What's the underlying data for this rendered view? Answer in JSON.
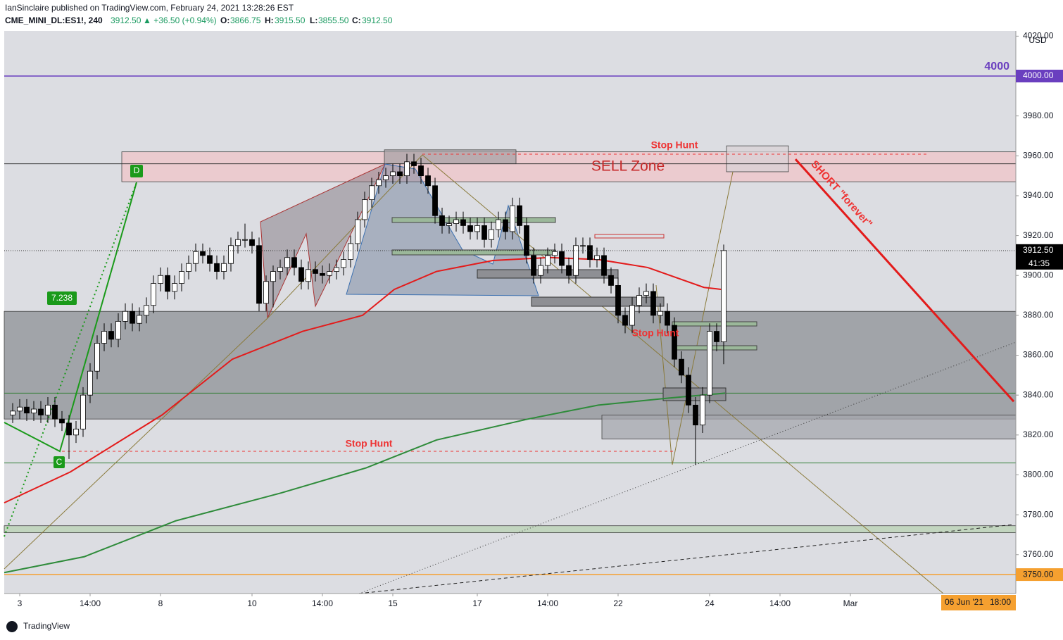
{
  "header": {
    "publisher": "IanSinclaire published on TradingView.com, February 24, 2021 13:28:26 EST",
    "symbol": "CME_MINI_DL:ES1!, 240",
    "last": "3912.50",
    "change": "▲ +36.50 (+0.94%)",
    "ohlc": [
      {
        "label": "O:",
        "value": "3866.75"
      },
      {
        "label": "H:",
        "value": "3915.50"
      },
      {
        "label": "L:",
        "value": "3855.50"
      },
      {
        "label": "C:",
        "value": "3912.50"
      }
    ]
  },
  "chart_data": {
    "type": "candlestick",
    "currency": "USD",
    "up_color": "#ffffff",
    "down_color": "#000000",
    "xlim": [
      -1.2,
      142.5
    ],
    "ylim": [
      3740.5,
      4022.6
    ],
    "xticks": [
      {
        "value": 1,
        "label": "3"
      },
      {
        "value": 11,
        "label": "14:00"
      },
      {
        "value": 21,
        "label": "8"
      },
      {
        "value": 34,
        "label": "10"
      },
      {
        "value": 44,
        "label": "14:00"
      },
      {
        "value": 54,
        "label": "15"
      },
      {
        "value": 66,
        "label": "17"
      },
      {
        "value": 76,
        "label": "14:00"
      },
      {
        "value": 86,
        "label": "22"
      },
      {
        "value": 99,
        "label": "24"
      },
      {
        "value": 109,
        "label": "14:00"
      },
      {
        "value": 119,
        "label": "Mar"
      }
    ],
    "yticks": [
      {
        "value": 3760,
        "label": "3760.00"
      },
      {
        "value": 3780,
        "label": "3780.00"
      },
      {
        "value": 3800,
        "label": "3800.00"
      },
      {
        "value": 3820,
        "label": "3820.00"
      },
      {
        "value": 3840,
        "label": "3840.00"
      },
      {
        "value": 3860,
        "label": "3860.00"
      },
      {
        "value": 3880,
        "label": "3880.00"
      },
      {
        "value": 3900,
        "label": "3900.00"
      },
      {
        "value": 3920,
        "label": "3920.00"
      },
      {
        "value": 3940,
        "label": "3940.00"
      },
      {
        "value": 3960,
        "label": "3960.00"
      },
      {
        "value": 3980,
        "label": "3980.00"
      },
      {
        "value": 4020,
        "label": "4020.00"
      }
    ],
    "open": [
      3830,
      3832,
      3834,
      3831,
      3833,
      3830,
      3835,
      3828,
      3826,
      3820,
      3823,
      3840,
      3852,
      3866,
      3872,
      3868,
      3877,
      3882,
      3876,
      3880,
      3885,
      3896,
      3900,
      3892,
      3896,
      3902,
      3906,
      3912,
      3910,
      3906,
      3902,
      3906,
      3915,
      3918,
      3918,
      3915,
      3886,
      3897,
      3902,
      3904,
      3909,
      3904,
      3897,
      3903,
      3901,
      3900,
      3902,
      3904,
      3908,
      3916,
      3928,
      3938,
      3945,
      3948,
      3950,
      3952,
      3950,
      3957,
      3955,
      3950,
      3945,
      3930,
      3925,
      3926,
      3928,
      3925,
      3922,
      3925,
      3918,
      3923,
      3928,
      3922,
      3935,
      3925,
      3910,
      3900,
      3905,
      3910,
      3912,
      3905,
      3900,
      3915,
      3915,
      3908,
      3910,
      3900,
      3895,
      3880,
      3875,
      3885,
      3890,
      3892,
      3880,
      3882,
      3875,
      3858,
      3850,
      3835,
      3825,
      3840,
      3872,
      3866.75
    ],
    "high": [
      3836,
      3838,
      3838,
      3837,
      3837,
      3839,
      3839,
      3832,
      3830,
      3827,
      3844,
      3856,
      3870,
      3876,
      3876,
      3881,
      3886,
      3886,
      3884,
      3889,
      3900,
      3904,
      3904,
      3900,
      3906,
      3910,
      3916,
      3916,
      3914,
      3910,
      3910,
      3919,
      3922,
      3926,
      3922,
      3919,
      3900,
      3905,
      3908,
      3913,
      3913,
      3908,
      3907,
      3907,
      3905,
      3906,
      3908,
      3912,
      3920,
      3932,
      3942,
      3949,
      3952,
      3954,
      3956,
      3956,
      3961,
      3961,
      3959,
      3954,
      3949,
      3934,
      3930,
      3932,
      3932,
      3929,
      3929,
      3929,
      3927,
      3932,
      3932,
      3939,
      3939,
      3929,
      3914,
      3909,
      3914,
      3916,
      3916,
      3909,
      3919,
      3919,
      3919,
      3914,
      3914,
      3904,
      3899,
      3884,
      3889,
      3894,
      3896,
      3896,
      3886,
      3886,
      3879,
      3862,
      3854,
      3839,
      3844,
      3876,
      3876,
      3915.5
    ],
    "low": [
      3826,
      3828,
      3827,
      3827,
      3826,
      3826,
      3824,
      3822,
      3808,
      3816,
      3819,
      3836,
      3848,
      3862,
      3864,
      3864,
      3873,
      3872,
      3872,
      3876,
      3881,
      3892,
      3888,
      3888,
      3892,
      3898,
      3902,
      3906,
      3902,
      3898,
      3898,
      3902,
      3911,
      3914,
      3911,
      3882,
      3882,
      3884,
      3898,
      3900,
      3900,
      3893,
      3893,
      3897,
      3896,
      3896,
      3898,
      3900,
      3904,
      3912,
      3924,
      3934,
      3941,
      3944,
      3946,
      3946,
      3946,
      3951,
      3946,
      3941,
      3926,
      3921,
      3921,
      3922,
      3921,
      3918,
      3918,
      3914,
      3914,
      3919,
      3918,
      3918,
      3921,
      3906,
      3896,
      3896,
      3901,
      3906,
      3901,
      3896,
      3896,
      3911,
      3904,
      3904,
      3896,
      3891,
      3876,
      3871,
      3871,
      3881,
      3886,
      3876,
      3876,
      3871,
      3854,
      3846,
      3831,
      3805,
      3821,
      3836,
      3862,
      3855.5
    ],
    "close": [
      3832,
      3834,
      3831,
      3833,
      3830,
      3835,
      3828,
      3826,
      3820,
      3823,
      3840,
      3852,
      3866,
      3872,
      3868,
      3877,
      3882,
      3876,
      3880,
      3885,
      3896,
      3900,
      3892,
      3896,
      3902,
      3906,
      3912,
      3910,
      3906,
      3902,
      3906,
      3915,
      3918,
      3918,
      3915,
      3886,
      3897,
      3902,
      3904,
      3909,
      3904,
      3897,
      3903,
      3901,
      3900,
      3902,
      3904,
      3908,
      3916,
      3928,
      3938,
      3945,
      3948,
      3950,
      3952,
      3950,
      3957,
      3955,
      3950,
      3945,
      3930,
      3925,
      3926,
      3928,
      3925,
      3922,
      3925,
      3918,
      3923,
      3928,
      3922,
      3935,
      3925,
      3910,
      3900,
      3905,
      3910,
      3912,
      3905,
      3900,
      3915,
      3915,
      3908,
      3910,
      3900,
      3895,
      3880,
      3875,
      3885,
      3890,
      3892,
      3880,
      3882,
      3875,
      3858,
      3850,
      3835,
      3825,
      3840,
      3872,
      3866.75,
      3912.5
    ],
    "lines": [
      {
        "color": "#e31b1b",
        "x": [
          -1.2,
          8.2,
          21.2,
          31.2,
          41.2,
          49.7,
          54.2,
          60.2,
          68.2,
          76.2,
          83.2,
          90.2,
          98.2,
          100.7
        ],
        "values": [
          3786,
          3801.5,
          3830,
          3858,
          3872,
          3880,
          3893,
          3902,
          3907.5,
          3909,
          3908,
          3904,
          3894,
          3893
        ]
      },
      {
        "color": "#2e8b3a",
        "x": [
          -1.2,
          10.2,
          23.2,
          38.2,
          50.2,
          60.2,
          73.2,
          83.2,
          93.2,
          101.2
        ],
        "values": [
          3751,
          3759,
          3777,
          3791,
          3803.5,
          3817.5,
          3828,
          3835,
          3838.5,
          3841
        ]
      },
      {
        "color": "#e31b1b",
        "x": [
          111.2,
          142.2
        ],
        "values": [
          3958.3,
          3836.8
        ]
      }
    ],
    "hlines": [
      {
        "value": 4000,
        "color": "#6a3fbf",
        "label": "4000.00"
      },
      {
        "value": 3750,
        "color": "#f5a030",
        "label": "3750.00"
      },
      {
        "value": 3956,
        "color": "#333333"
      },
      {
        "value": 3841,
        "color": "#2e7d32"
      },
      {
        "value": 3806,
        "color": "#2e7d32"
      }
    ],
    "zones": [
      {
        "x": [
          -1.2,
          142.5
        ],
        "y": [
          3828,
          3882
        ],
        "color": "#8e9096"
      },
      {
        "x": [
          15.5,
          142.5
        ],
        "y": [
          3947,
          3962
        ],
        "color": "#f0c4c8"
      },
      {
        "x": [
          83.7,
          142.5
        ],
        "y": [
          3818,
          3830
        ],
        "color": "#a5a7ad"
      },
      {
        "x": [
          -1.2,
          142.5
        ],
        "y": [
          3771,
          3774.5
        ],
        "color": "#b9d2b3"
      },
      {
        "x": [
          52.8,
          71.5
        ],
        "y": [
          3956,
          3963
        ],
        "color": "#a8a2a6"
      },
      {
        "x": [
          101.4,
          110.2
        ],
        "y": [
          3952,
          3965
        ],
        "color": "#d9d2d5"
      }
    ],
    "last_price": {
      "value": 3912.5,
      "label": "3912.50",
      "countdown": "41:35"
    },
    "annotations": {
      "level": "4000",
      "sell_zone": "SELL Zone",
      "stop_hunt": [
        "Stop Hunt",
        "Stop Hunt",
        "Stop Hunt"
      ],
      "short": "SHORT \"forever\"",
      "d": "D",
      "c": "C",
      "ratio": "7.238"
    },
    "date_label": "06 Jun '21",
    "time_label": "18:00"
  },
  "footer": "TradingView"
}
